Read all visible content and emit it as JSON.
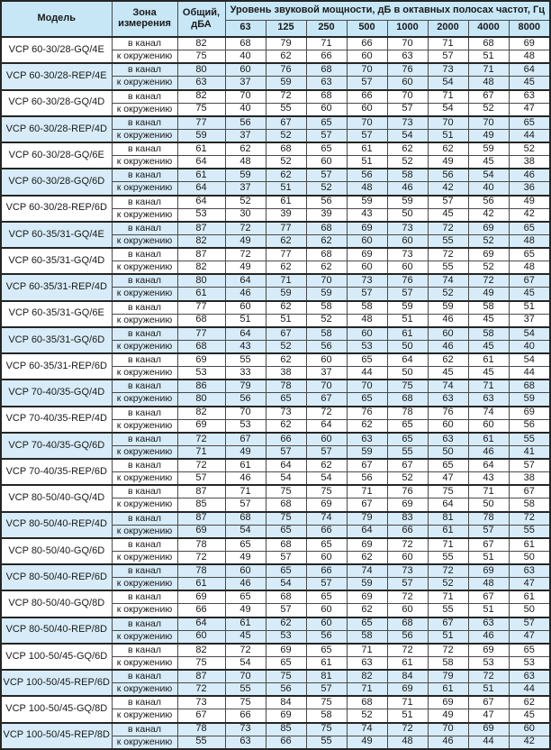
{
  "table": {
    "header": {
      "model": "Модель",
      "zone": "Зона измерения",
      "total": "Общий, дБА",
      "octave_title": "Уровень звуковой мощности, дБ в октавных полосах частот, Гц",
      "frequencies": [
        "63",
        "125",
        "250",
        "500",
        "1000",
        "2000",
        "4000",
        "8000"
      ]
    },
    "zone_labels": [
      "в канал",
      "к окружению"
    ],
    "colors": {
      "header_bg": "#c7e7f7",
      "shade_bg": "#d7ecf8",
      "border": "#4a4a4a",
      "border_heavy": "#252525",
      "text": "#1a1a1a"
    },
    "blocks": [
      {
        "model": "VCP 60-30/28-GQ/4E",
        "shaded": false,
        "in_duct": {
          "total": 82,
          "levels": [
            68,
            79,
            71,
            66,
            70,
            71,
            68,
            69
          ]
        },
        "to_surroundings": {
          "total": 75,
          "levels": [
            40,
            62,
            66,
            60,
            63,
            57,
            51,
            48
          ]
        }
      },
      {
        "model": "VCP 60-30/28-REP/4E",
        "shaded": true,
        "in_duct": {
          "total": 80,
          "levels": [
            60,
            76,
            68,
            70,
            76,
            73,
            71,
            64
          ]
        },
        "to_surroundings": {
          "total": 63,
          "levels": [
            37,
            59,
            63,
            57,
            60,
            54,
            48,
            45
          ]
        }
      },
      {
        "model": "VCP 60-30/28-GQ/4D",
        "shaded": false,
        "in_duct": {
          "total": 82,
          "levels": [
            70,
            72,
            68,
            66,
            70,
            71,
            67,
            63
          ]
        },
        "to_surroundings": {
          "total": 75,
          "levels": [
            40,
            55,
            60,
            60,
            57,
            54,
            52,
            47
          ]
        }
      },
      {
        "model": "VCP 60-30/28-REP/4D",
        "shaded": true,
        "in_duct": {
          "total": 77,
          "levels": [
            56,
            67,
            65,
            70,
            73,
            70,
            70,
            65
          ]
        },
        "to_surroundings": {
          "total": 59,
          "levels": [
            37,
            52,
            57,
            57,
            54,
            51,
            49,
            44
          ]
        }
      },
      {
        "model": "VCP 60-30/28-GQ/6E",
        "shaded": false,
        "in_duct": {
          "total": 61,
          "levels": [
            62,
            68,
            65,
            61,
            62,
            62,
            59,
            52
          ]
        },
        "to_surroundings": {
          "total": 64,
          "levels": [
            48,
            52,
            60,
            51,
            52,
            49,
            45,
            38
          ]
        }
      },
      {
        "model": "VCP 60-30/28-GQ/6D",
        "shaded": true,
        "in_duct": {
          "total": 61,
          "levels": [
            59,
            62,
            57,
            56,
            58,
            56,
            54,
            46
          ]
        },
        "to_surroundings": {
          "total": 64,
          "levels": [
            37,
            51,
            52,
            48,
            46,
            42,
            40,
            36
          ]
        }
      },
      {
        "model": "VCP 60-30/28-REP/6D",
        "shaded": false,
        "in_duct": {
          "total": 64,
          "levels": [
            52,
            61,
            56,
            59,
            59,
            57,
            56,
            49
          ]
        },
        "to_surroundings": {
          "total": 53,
          "levels": [
            30,
            39,
            39,
            43,
            50,
            45,
            42,
            42
          ]
        }
      },
      {
        "model": "VCP 60-35/31-GQ/4E",
        "shaded": true,
        "in_duct": {
          "total": 87,
          "levels": [
            72,
            77,
            68,
            69,
            73,
            72,
            69,
            65
          ]
        },
        "to_surroundings": {
          "total": 82,
          "levels": [
            49,
            62,
            62,
            60,
            60,
            55,
            52,
            48
          ]
        }
      },
      {
        "model": "VCP 60-35/31-GQ/4D",
        "shaded": false,
        "in_duct": {
          "total": 87,
          "levels": [
            72,
            77,
            68,
            69,
            73,
            72,
            69,
            65
          ]
        },
        "to_surroundings": {
          "total": 82,
          "levels": [
            49,
            62,
            62,
            60,
            60,
            55,
            52,
            48
          ]
        }
      },
      {
        "model": "VCP 60-35/31-REP/4D",
        "shaded": true,
        "in_duct": {
          "total": 80,
          "levels": [
            64,
            71,
            70,
            73,
            76,
            74,
            72,
            67
          ]
        },
        "to_surroundings": {
          "total": 61,
          "levels": [
            46,
            59,
            59,
            57,
            57,
            52,
            49,
            45
          ]
        }
      },
      {
        "model": "VCP 60-35/31-GQ/6E",
        "shaded": false,
        "in_duct": {
          "total": 77,
          "levels": [
            60,
            62,
            58,
            58,
            59,
            59,
            58,
            51
          ]
        },
        "to_surroundings": {
          "total": 68,
          "levels": [
            51,
            51,
            52,
            48,
            51,
            46,
            45,
            37
          ]
        }
      },
      {
        "model": "VCP 60-35/31-GQ/6D",
        "shaded": true,
        "in_duct": {
          "total": 77,
          "levels": [
            64,
            67,
            58,
            60,
            61,
            60,
            58,
            54
          ]
        },
        "to_surroundings": {
          "total": 68,
          "levels": [
            43,
            52,
            56,
            53,
            50,
            46,
            45,
            40
          ]
        }
      },
      {
        "model": "VCP 60-35/31-REP/6D",
        "shaded": false,
        "in_duct": {
          "total": 69,
          "levels": [
            55,
            62,
            60,
            65,
            64,
            62,
            61,
            54
          ]
        },
        "to_surroundings": {
          "total": 53,
          "levels": [
            33,
            38,
            37,
            44,
            50,
            45,
            45,
            44
          ]
        }
      },
      {
        "model": "VCP 70-40/35-GQ/4D",
        "shaded": true,
        "in_duct": {
          "total": 86,
          "levels": [
            79,
            78,
            70,
            70,
            75,
            74,
            71,
            68
          ]
        },
        "to_surroundings": {
          "total": 80,
          "levels": [
            56,
            65,
            67,
            65,
            68,
            63,
            63,
            59
          ]
        }
      },
      {
        "model": "VCP 70-40/35-REP/4D",
        "shaded": false,
        "in_duct": {
          "total": 82,
          "levels": [
            70,
            73,
            72,
            76,
            78,
            76,
            74,
            69
          ]
        },
        "to_surroundings": {
          "total": 69,
          "levels": [
            53,
            62,
            64,
            62,
            65,
            60,
            60,
            56
          ]
        }
      },
      {
        "model": "VCP 70-40/35-GQ/6D",
        "shaded": true,
        "in_duct": {
          "total": 72,
          "levels": [
            67,
            66,
            60,
            63,
            65,
            63,
            61,
            55
          ]
        },
        "to_surroundings": {
          "total": 71,
          "levels": [
            49,
            57,
            57,
            59,
            55,
            50,
            46,
            41
          ]
        }
      },
      {
        "model": "VCP 70-40/35-REP/6D",
        "shaded": false,
        "in_duct": {
          "total": 72,
          "levels": [
            61,
            64,
            62,
            67,
            67,
            65,
            64,
            57
          ]
        },
        "to_surroundings": {
          "total": 57,
          "levels": [
            46,
            54,
            54,
            56,
            52,
            47,
            43,
            38
          ]
        }
      },
      {
        "model": "VCP 80-50/40-GQ/4D",
        "shaded": false,
        "in_duct": {
          "total": 87,
          "levels": [
            71,
            75,
            75,
            71,
            76,
            75,
            71,
            67
          ]
        },
        "to_surroundings": {
          "total": 85,
          "levels": [
            57,
            68,
            69,
            67,
            69,
            64,
            50,
            58
          ]
        }
      },
      {
        "model": "VCP 80-50/40-REP/4D",
        "shaded": true,
        "in_duct": {
          "total": 87,
          "levels": [
            68,
            75,
            74,
            79,
            83,
            81,
            78,
            72
          ]
        },
        "to_surroundings": {
          "total": 69,
          "levels": [
            54,
            65,
            66,
            64,
            66,
            61,
            57,
            55
          ]
        }
      },
      {
        "model": "VCP 80-50/40-GQ/6D",
        "shaded": false,
        "in_duct": {
          "total": 78,
          "levels": [
            65,
            68,
            65,
            69,
            72,
            71,
            67,
            61
          ]
        },
        "to_surroundings": {
          "total": 72,
          "levels": [
            49,
            57,
            60,
            62,
            60,
            55,
            51,
            50
          ]
        }
      },
      {
        "model": "VCP 80-50/40-REP/6D",
        "shaded": true,
        "in_duct": {
          "total": 78,
          "levels": [
            60,
            65,
            66,
            74,
            73,
            72,
            69,
            63
          ]
        },
        "to_surroundings": {
          "total": 61,
          "levels": [
            46,
            54,
            57,
            59,
            57,
            52,
            48,
            47
          ]
        }
      },
      {
        "model": "VCP 80-50/40-GQ/8D",
        "shaded": false,
        "in_duct": {
          "total": 69,
          "levels": [
            65,
            68,
            65,
            69,
            72,
            71,
            67,
            61
          ]
        },
        "to_surroundings": {
          "total": 66,
          "levels": [
            49,
            57,
            60,
            62,
            60,
            55,
            51,
            50
          ]
        }
      },
      {
        "model": "VCP 80-50/40-REP/8D",
        "shaded": true,
        "in_duct": {
          "total": 64,
          "levels": [
            61,
            62,
            60,
            65,
            68,
            67,
            63,
            57
          ]
        },
        "to_surroundings": {
          "total": 60,
          "levels": [
            45,
            53,
            56,
            58,
            56,
            51,
            46,
            47
          ]
        }
      },
      {
        "model": "VCP 100-50/45-GQ/6D",
        "shaded": false,
        "in_duct": {
          "total": 82,
          "levels": [
            72,
            69,
            65,
            71,
            72,
            72,
            69,
            65
          ]
        },
        "to_surroundings": {
          "total": 75,
          "levels": [
            54,
            65,
            61,
            63,
            61,
            58,
            53,
            53
          ]
        }
      },
      {
        "model": "VCP 100-50/45-REP/6D",
        "shaded": true,
        "in_duct": {
          "total": 87,
          "levels": [
            70,
            75,
            81,
            82,
            84,
            79,
            72,
            63
          ]
        },
        "to_surroundings": {
          "total": 72,
          "levels": [
            55,
            56,
            57,
            71,
            69,
            61,
            51,
            44
          ]
        }
      },
      {
        "model": "VCP 100-50/45-GQ/8D",
        "shaded": false,
        "in_duct": {
          "total": 73,
          "levels": [
            75,
            84,
            75,
            68,
            71,
            69,
            67,
            62
          ]
        },
        "to_surroundings": {
          "total": 67,
          "levels": [
            66,
            69,
            58,
            52,
            51,
            49,
            47,
            45
          ]
        }
      },
      {
        "model": "VCP 100-50/45-REP/8D",
        "shaded": true,
        "in_duct": {
          "total": 78,
          "levels": [
            73,
            85,
            75,
            74,
            72,
            70,
            69,
            60
          ]
        },
        "to_surroundings": {
          "total": 55,
          "levels": [
            63,
            66,
            55,
            49,
            48,
            46,
            44,
            42
          ]
        }
      }
    ]
  }
}
